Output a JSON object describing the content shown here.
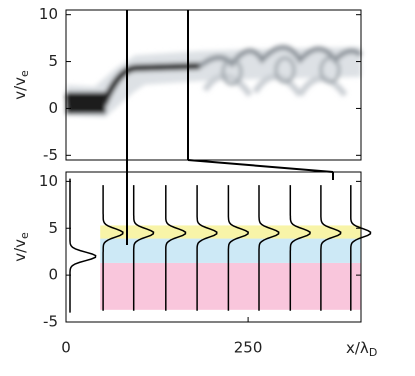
{
  "chart_data": [
    {
      "type": "phase-space",
      "ylabel": "v/v",
      "ylabel_sub": "e",
      "xlim": [
        0,
        405
      ],
      "ylim": [
        -5.5,
        10.5
      ],
      "yticks": [
        -5,
        0,
        5,
        10
      ]
    },
    {
      "type": "profiles",
      "ylabel": "v/v",
      "ylabel_sub": "e",
      "xlabel": "x/λ",
      "xlabel_sub": "D",
      "xlim": [
        0,
        405
      ],
      "ylim": [
        -5,
        11
      ],
      "xticks": [
        0,
        250
      ],
      "yticks": [
        -5,
        0,
        5,
        10
      ],
      "bands": [
        {
          "color": "#f9c6dc",
          "ymin": -3.7,
          "ymax": 1.3
        },
        {
          "color": "#cde9f6",
          "ymin": 1.3,
          "ymax": 3.9
        },
        {
          "color": "#f8f4a8",
          "ymin": 3.9,
          "ymax": 5.3
        }
      ],
      "bands_x": 47,
      "profile_x": [
        5.5,
        51,
        93,
        137,
        180,
        223,
        265,
        308,
        350,
        391
      ],
      "profile_peak": [
        2,
        4.5,
        4.5,
        4.5,
        4.5,
        4.5,
        4.5,
        4.5,
        4.5,
        4.5
      ]
    }
  ]
}
